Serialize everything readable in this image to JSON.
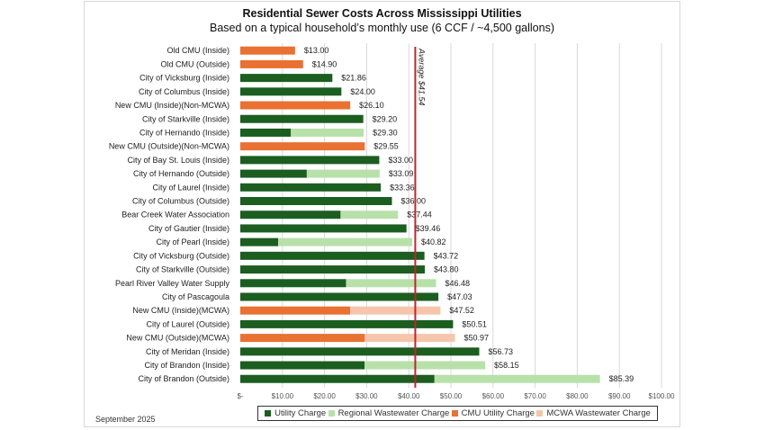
{
  "chart_data": {
    "type": "bar",
    "orientation": "horizontal",
    "stacked": true,
    "title": "Residential Sewer Costs Across Mississippi Utilities",
    "subtitle": "Based on a typical household’s monthly use (6 CCF / ~4,500 gallons)",
    "xlabel": "",
    "ylabel": "",
    "xlim": [
      0,
      100
    ],
    "x_ticks": [
      0,
      10,
      20,
      30,
      40,
      50,
      60,
      70,
      80,
      90,
      100
    ],
    "x_tick_labels": [
      "$-",
      "$10.00",
      "$20.00",
      "$30.00",
      "$40.00",
      "$50.00",
      "$60.00",
      "$70.00",
      "$80.00",
      "$90.00",
      "$100.00"
    ],
    "grid": "vertical",
    "categories": [
      "Old CMU (Inside)",
      "Old CMU (Outside)",
      "City of Vicksburg (Inside)",
      "City of Columbus (Inside)",
      "New CMU (Inside)(Non-MCWA)",
      "City of Starkville (Inside)",
      "City of Hernando (Inside)",
      "New CMU (Outside)(Non-MCWA)",
      "City of Bay St. Louis (Inside)",
      "City of Hernando (Outside)",
      "City of Laurel (Inside)",
      "City of Columbus (Outside)",
      "Bear Creek Water Association",
      "City of Gautier (Inside)",
      "City of Pearl (Inside)",
      "City of Vicksburg (Outside)",
      "City of Starkville (Outside)",
      "Pearl River Valley Water Supply",
      "City of Pascagoula",
      "New CMU (Inside)(MCWA)",
      "City of Laurel (Outside)",
      "New CMU (Outside)(MCWA)",
      "City of Meridan (Inside)",
      "City of Brandon (Inside)",
      "City of Brandon (Outside)"
    ],
    "series": [
      {
        "name": "Utility Charge",
        "color": "#1b5e20",
        "values": [
          0,
          0,
          21.86,
          24.0,
          0,
          29.2,
          12.0,
          0,
          33.0,
          15.79,
          33.36,
          36.0,
          23.8,
          39.46,
          9.0,
          43.72,
          43.8,
          25.1,
          47.03,
          0,
          50.51,
          0,
          56.73,
          29.5,
          46.1
        ]
      },
      {
        "name": "Regional Wastewater Charge",
        "color": "#b7e1a9",
        "values": [
          0,
          0,
          0,
          0,
          0,
          0,
          17.3,
          0,
          0,
          17.3,
          0,
          0,
          13.64,
          0,
          31.82,
          0,
          0,
          21.38,
          0,
          0,
          0,
          0,
          0,
          28.65,
          39.29
        ]
      },
      {
        "name": "CMU Utility Charge",
        "color": "#e97132",
        "values": [
          13.0,
          14.9,
          0,
          0,
          26.1,
          0,
          0,
          29.55,
          0,
          0,
          0,
          0,
          0,
          0,
          0,
          0,
          0,
          0,
          0,
          26.1,
          0,
          29.55,
          0,
          0,
          0
        ]
      },
      {
        "name": "MCWA Wastewater Charge",
        "color": "#f5c6ab",
        "values": [
          0,
          0,
          0,
          0,
          0,
          0,
          0,
          0,
          0,
          0,
          0,
          0,
          0,
          0,
          0,
          0,
          0,
          0,
          0,
          21.42,
          0,
          21.42,
          0,
          0,
          0
        ]
      }
    ],
    "total_labels": [
      "$13.00",
      "$14.90",
      "$21.86",
      "$24.00",
      "$26.10",
      "$29.20",
      "$29.30",
      "$29.55",
      "$33.00",
      "$33.09",
      "$33.36",
      "$36.00",
      "$37.44",
      "$39.46",
      "$40.82",
      "$43.72",
      "$43.80",
      "$46.48",
      "$47.03",
      "$47.52",
      "$50.51",
      "$50.97",
      "$56.73",
      "$58.15",
      "$85.39"
    ],
    "reference_line": {
      "value": 41.54,
      "label": "Average $41.54",
      "color": "#c0262d"
    },
    "legend": {
      "position": "bottom",
      "entries": [
        "Utility Charge",
        "Regional Wastewater Charge",
        "CMU Utility Charge",
        "MCWA Wastewater Charge"
      ]
    },
    "footer_note": "September 2025"
  }
}
